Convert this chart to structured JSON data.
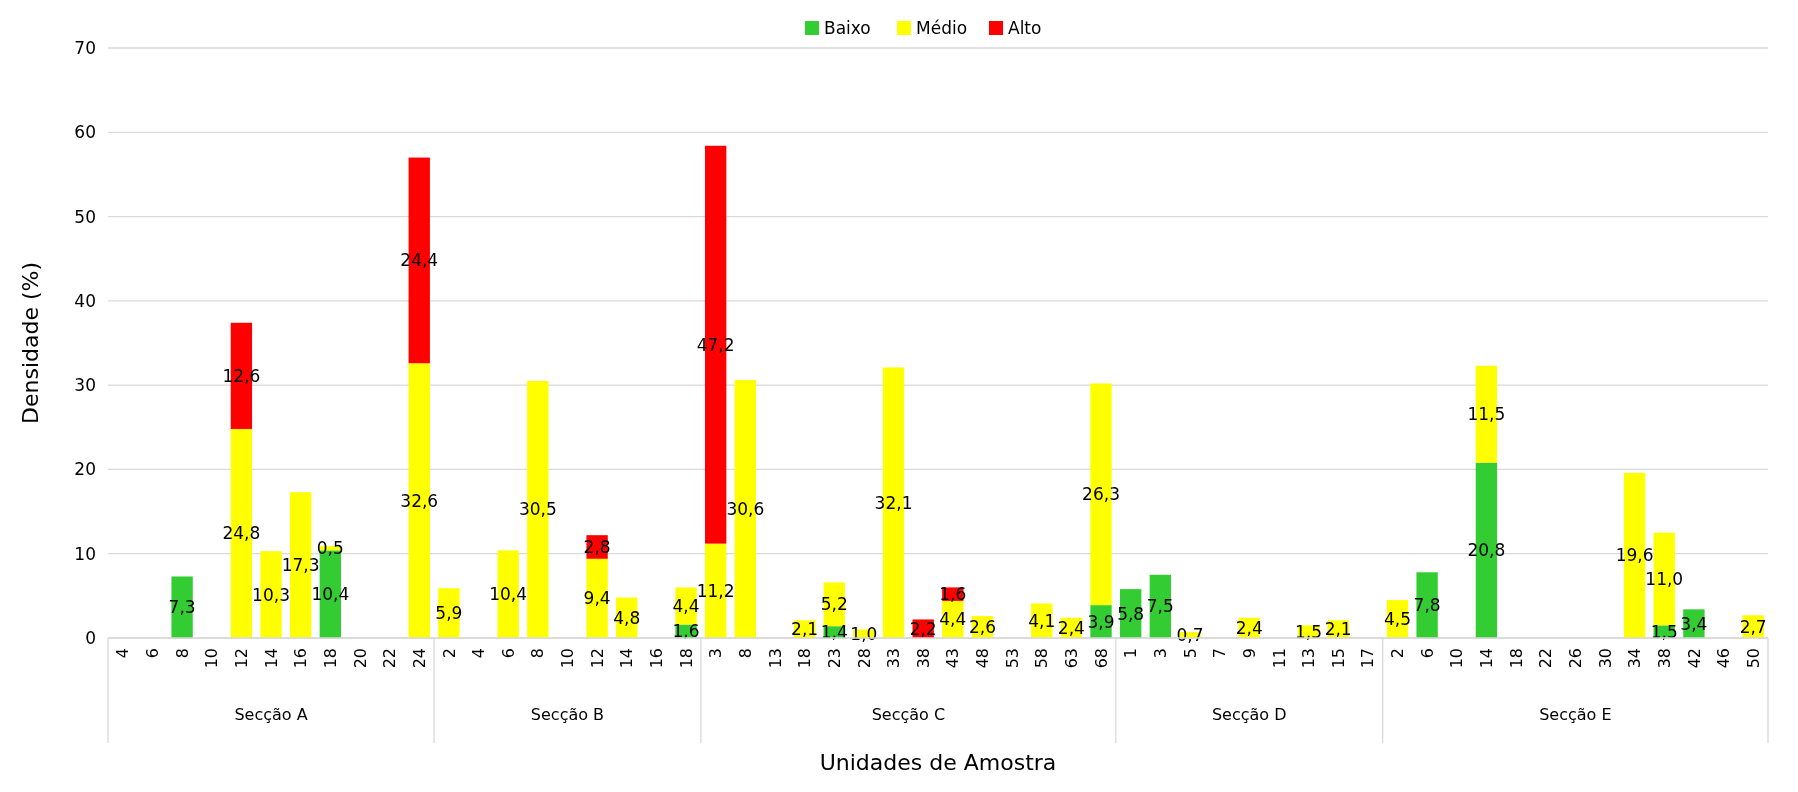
{
  "chart_data": {
    "type": "bar",
    "stacked": true,
    "xlabel": "Unidades de Amostra",
    "ylabel": "Densidade (%)",
    "legend": "top",
    "grid": "y",
    "ylim": [
      0,
      70
    ],
    "yticks": [
      0,
      10,
      20,
      30,
      40,
      50,
      60,
      70
    ],
    "categories": [
      "4",
      "6",
      "8",
      "10",
      "12",
      "14",
      "16",
      "18",
      "20",
      "22",
      "24",
      "2",
      "4",
      "6",
      "8",
      "10",
      "12",
      "14",
      "16",
      "18",
      "3",
      "8",
      "13",
      "18",
      "23",
      "28",
      "33",
      "38",
      "43",
      "48",
      "53",
      "58",
      "63",
      "68",
      "1",
      "3",
      "5",
      "7",
      "9",
      "11",
      "13",
      "15",
      "17",
      "2",
      "6",
      "10",
      "14",
      "18",
      "22",
      "26",
      "30",
      "34",
      "38",
      "42",
      "46",
      "50"
    ],
    "annotations": [
      "Secção A",
      "Secção B",
      "Secção C",
      "Secção D",
      "Secção E"
    ],
    "series": [
      {
        "name": "Baixo",
        "color": "#33cc33",
        "values": [
          null,
          null,
          7.3,
          null,
          null,
          null,
          null,
          10.4,
          null,
          null,
          null,
          null,
          null,
          null,
          null,
          null,
          null,
          null,
          null,
          1.6,
          null,
          null,
          null,
          null,
          1.4,
          null,
          null,
          null,
          null,
          null,
          null,
          null,
          null,
          3.9,
          5.8,
          7.5,
          null,
          null,
          null,
          null,
          null,
          null,
          null,
          null,
          7.8,
          null,
          20.8,
          null,
          null,
          null,
          null,
          null,
          1.5,
          3.4,
          null,
          null
        ],
        "value_labels": [
          null,
          null,
          "7,3",
          null,
          null,
          null,
          null,
          "10,4",
          null,
          null,
          null,
          null,
          null,
          null,
          null,
          null,
          null,
          null,
          null,
          "1,6",
          null,
          null,
          null,
          null,
          "1,4",
          null,
          null,
          null,
          null,
          null,
          null,
          null,
          null,
          "3,9",
          "5,8",
          "7,5",
          null,
          null,
          null,
          null,
          null,
          null,
          null,
          null,
          "7,8",
          null,
          "20,8",
          null,
          null,
          null,
          null,
          null,
          "1,5",
          "3,4",
          null,
          null
        ]
      },
      {
        "name": "Médio",
        "color": "#ffff00",
        "values": [
          null,
          null,
          null,
          null,
          24.8,
          10.3,
          17.3,
          0.5,
          null,
          null,
          32.6,
          5.9,
          null,
          10.4,
          30.5,
          null,
          9.4,
          4.8,
          null,
          4.4,
          11.2,
          30.6,
          null,
          2.1,
          5.2,
          1.0,
          32.1,
          null,
          4.4,
          2.6,
          null,
          4.1,
          2.4,
          26.3,
          null,
          null,
          0.7,
          null,
          2.4,
          null,
          1.5,
          2.1,
          null,
          4.5,
          null,
          null,
          11.5,
          null,
          null,
          null,
          null,
          19.6,
          11.0,
          null,
          null,
          2.7
        ],
        "value_labels": [
          null,
          null,
          null,
          null,
          "24,8",
          "10,3",
          "17,3",
          "0,5",
          null,
          null,
          "32,6",
          "5,9",
          null,
          "10,4",
          "30,5",
          null,
          "9,4",
          "4,8",
          null,
          "4,4",
          "11,2",
          "30,6",
          null,
          "2,1",
          "5,2",
          "1,0",
          "32,1",
          null,
          "4,4",
          "2,6",
          null,
          "4,1",
          "2,4",
          "26,3",
          null,
          null,
          "0,7",
          null,
          "2,4",
          null,
          "1,5",
          "2,1",
          null,
          "4,5",
          null,
          null,
          "11,5",
          null,
          null,
          null,
          null,
          "19,6",
          "11,0",
          null,
          null,
          "2,7"
        ]
      },
      {
        "name": "Alto",
        "color": "#ff0000",
        "values": [
          null,
          null,
          null,
          null,
          12.6,
          null,
          null,
          null,
          null,
          null,
          24.4,
          null,
          null,
          null,
          null,
          null,
          2.8,
          null,
          null,
          null,
          47.2,
          null,
          null,
          null,
          null,
          null,
          null,
          2.2,
          1.6,
          null,
          null,
          null,
          null,
          null,
          null,
          null,
          null,
          null,
          null,
          null,
          null,
          null,
          null,
          null,
          null,
          null,
          null,
          null,
          null,
          null,
          null,
          null,
          null,
          null,
          null,
          null
        ],
        "value_labels": [
          null,
          null,
          null,
          null,
          "12,6",
          null,
          null,
          null,
          null,
          null,
          "24,4",
          null,
          null,
          null,
          null,
          null,
          "2,8",
          null,
          null,
          null,
          "47,2",
          null,
          null,
          null,
          null,
          null,
          null,
          "2,2",
          "1,6",
          null,
          null,
          null,
          null,
          null,
          null,
          null,
          null,
          null,
          null,
          null,
          null,
          null,
          null,
          null,
          null,
          null,
          null,
          null,
          null,
          null,
          null,
          null,
          null,
          null,
          null,
          null
        ]
      }
    ]
  }
}
